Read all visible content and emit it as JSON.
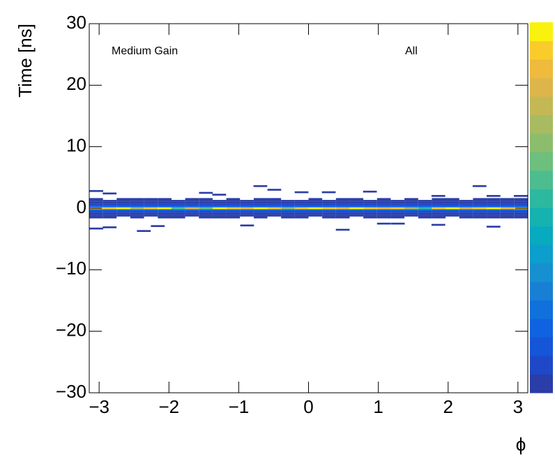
{
  "chart_data": {
    "type": "heatmap",
    "ylabel": "Time [ns]",
    "xlabel": "ϕ",
    "annotations": [
      "Medium Gain",
      "All"
    ],
    "xlim": [
      -3.1416,
      3.1416
    ],
    "ylim": [
      -30,
      30
    ],
    "xticks": [
      {
        "value": -3,
        "label": "−3"
      },
      {
        "value": -2,
        "label": "−2"
      },
      {
        "value": -1,
        "label": "−1"
      },
      0,
      1,
      2,
      3
    ],
    "yticks": [
      {
        "value": -30,
        "label": "−30"
      },
      {
        "value": -20,
        "label": "−20"
      },
      {
        "value": -10,
        "label": "−10"
      },
      0,
      10,
      20,
      30
    ],
    "zlim": [
      0,
      1
    ],
    "colormap": [
      "#2a3da8",
      "#1f48c8",
      "#1555d8",
      "#0f62e0",
      "#1070dc",
      "#1780d4",
      "#1690d0",
      "#0c9ecc",
      "#08aac0",
      "#16b2b0",
      "#2db8a0",
      "#4cbd8e",
      "#6cbf7c",
      "#8cbd6c",
      "#a8bb60",
      "#c4b854",
      "#dcb64a",
      "#f0ba3c",
      "#f9cc2c",
      "#f9f20e"
    ],
    "xbins": [
      -3.142,
      -2.945,
      -2.749,
      -2.553,
      -2.356,
      -2.16,
      -1.963,
      -1.767,
      -1.571,
      -1.374,
      -1.178,
      -0.982,
      -0.785,
      -0.589,
      -0.393,
      -0.196,
      0,
      0.196,
      0.393,
      0.589,
      0.785,
      0.982,
      1.178,
      1.374,
      1.571,
      1.767,
      1.963,
      2.16,
      2.356,
      2.553,
      2.749,
      2.945,
      3.142
    ],
    "ybins": [
      -1.65,
      -1.35,
      -1.05,
      -0.75,
      -0.45,
      -0.15,
      0.15,
      0.45,
      0.75,
      1.05,
      1.35,
      1.65
    ],
    "z": [
      [
        0.005,
        0.005,
        0,
        0.005,
        0,
        0.005,
        0.005,
        0,
        0.005,
        0.005,
        0.005,
        0,
        0.005,
        0,
        0.005,
        0.005,
        0,
        0.005,
        0.005,
        0,
        0.005,
        0.005,
        0.005,
        0,
        0.005,
        0.005,
        0,
        0.005,
        0.005,
        0.005,
        0.005,
        0.005
      ],
      [
        0.02,
        0.02,
        0.02,
        0.02,
        0.02,
        0.02,
        0.02,
        0.02,
        0.02,
        0.02,
        0.02,
        0.02,
        0.02,
        0.02,
        0.02,
        0.02,
        0.02,
        0.02,
        0.02,
        0.02,
        0.02,
        0.02,
        0.02,
        0.02,
        0.02,
        0.02,
        0.02,
        0.02,
        0.02,
        0.02,
        0.02,
        0.02
      ],
      [
        0.03,
        0.03,
        0.03,
        0.03,
        0.03,
        0.03,
        0.03,
        0.03,
        0.03,
        0.03,
        0.03,
        0.03,
        0.03,
        0.03,
        0.03,
        0.03,
        0.03,
        0.03,
        0.03,
        0.03,
        0.03,
        0.03,
        0.03,
        0.03,
        0.03,
        0.03,
        0.03,
        0.03,
        0.03,
        0.03,
        0.03,
        0.03
      ],
      [
        0.05,
        0.05,
        0.05,
        0.05,
        0.05,
        0.05,
        0.05,
        0.05,
        0.05,
        0.05,
        0.05,
        0.05,
        0.05,
        0.05,
        0.05,
        0.05,
        0.05,
        0.05,
        0.05,
        0.05,
        0.05,
        0.05,
        0.05,
        0.05,
        0.05,
        0.05,
        0.05,
        0.05,
        0.05,
        0.05,
        0.05,
        0.05
      ],
      [
        0.15,
        0.15,
        0.15,
        0.15,
        0.15,
        0.15,
        0.15,
        0.15,
        0.15,
        0.15,
        0.15,
        0.15,
        0.15,
        0.15,
        0.15,
        0.15,
        0.15,
        0.15,
        0.15,
        0.15,
        0.15,
        0.15,
        0.15,
        0.15,
        0.15,
        0.15,
        0.15,
        0.15,
        0.15,
        0.15,
        0.15,
        0.15
      ],
      [
        0.85,
        0.9,
        0.95,
        0.7,
        0.9,
        0.95,
        0.55,
        0.8,
        0.6,
        0.95,
        0.9,
        0.85,
        0.95,
        0.9,
        0.65,
        0.9,
        0.95,
        0.9,
        0.85,
        0.95,
        0.9,
        0.85,
        0.9,
        0.7,
        0.5,
        0.9,
        0.95,
        0.8,
        0.9,
        0.95,
        0.85,
        0.9
      ],
      [
        0.15,
        0.15,
        0.15,
        0.15,
        0.15,
        0.15,
        0.15,
        0.15,
        0.15,
        0.15,
        0.15,
        0.15,
        0.15,
        0.15,
        0.15,
        0.15,
        0.15,
        0.15,
        0.15,
        0.15,
        0.15,
        0.15,
        0.15,
        0.15,
        0.15,
        0.15,
        0.15,
        0.15,
        0.15,
        0.15,
        0.15,
        0.15
      ],
      [
        0.05,
        0.05,
        0.05,
        0.05,
        0.05,
        0.05,
        0.05,
        0.05,
        0.05,
        0.05,
        0.05,
        0.05,
        0.05,
        0.05,
        0.05,
        0.05,
        0.05,
        0.05,
        0.05,
        0.05,
        0.05,
        0.05,
        0.05,
        0.05,
        0.05,
        0.05,
        0.05,
        0.05,
        0.05,
        0.05,
        0.05,
        0.05
      ],
      [
        0.03,
        0.03,
        0.03,
        0.03,
        0.03,
        0.03,
        0.03,
        0.03,
        0.03,
        0.03,
        0.03,
        0.03,
        0.03,
        0.03,
        0.03,
        0.03,
        0.03,
        0.03,
        0.03,
        0.03,
        0.03,
        0.03,
        0.03,
        0.03,
        0.03,
        0.03,
        0.03,
        0.03,
        0.03,
        0.03,
        0.03,
        0.03
      ],
      [
        0.02,
        0.02,
        0.02,
        0.02,
        0.02,
        0.02,
        0.02,
        0.02,
        0.02,
        0.02,
        0.02,
        0.02,
        0.02,
        0.02,
        0.02,
        0.02,
        0.02,
        0.02,
        0.02,
        0.02,
        0.02,
        0.02,
        0.02,
        0.02,
        0.02,
        0.02,
        0.02,
        0.02,
        0.02,
        0.02,
        0.02,
        0.02
      ],
      [
        0.005,
        0,
        0.005,
        0.005,
        0.005,
        0.005,
        0,
        0.005,
        0.005,
        0,
        0.005,
        0,
        0.005,
        0.005,
        0,
        0,
        0.005,
        0,
        0.005,
        0.005,
        0,
        0.005,
        0,
        0.005,
        0,
        0.005,
        0.005,
        0,
        0.005,
        0.005,
        0.005,
        0.005
      ]
    ],
    "outliers": {
      "x": [
        -3.04,
        -2.85,
        -3.04,
        -2.85,
        -2.36,
        -2.16,
        -1.47,
        -1.28,
        -0.69,
        -0.49,
        -0.88,
        -0.1,
        0.29,
        0.49,
        0.88,
        1.08,
        1.28,
        1.86,
        1.86,
        2.45,
        2.65,
        2.65,
        3.04
      ],
      "y": [
        2.8,
        2.4,
        -3.3,
        -3.1,
        -3.7,
        -2.9,
        2.5,
        2.2,
        3.6,
        3.0,
        -2.8,
        2.6,
        2.6,
        -3.5,
        2.7,
        -2.5,
        -2.5,
        2.0,
        -2.7,
        3.6,
        -3.0,
        2.0,
        2.0
      ],
      "z": [
        0.01,
        0.01,
        0.01,
        0.01,
        0.01,
        0.01,
        0.01,
        0.01,
        0.01,
        0.01,
        0.01,
        0.01,
        0.01,
        0.01,
        0.01,
        0.01,
        0.01,
        0.01,
        0.01,
        0.01,
        0.01,
        0.01,
        0.01
      ]
    }
  }
}
